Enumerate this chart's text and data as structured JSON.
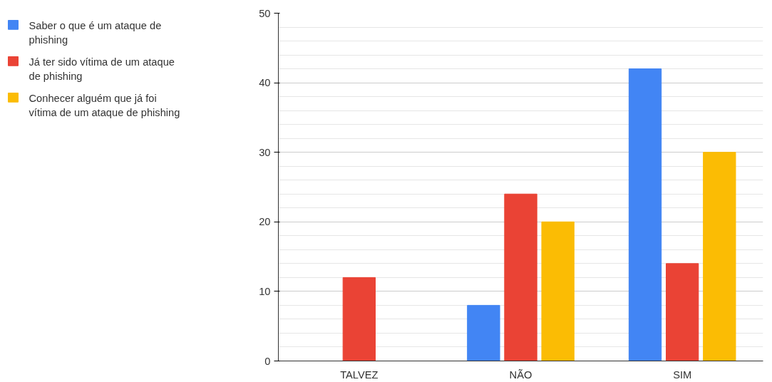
{
  "chart_data": {
    "type": "bar",
    "categories": [
      "TALVEZ",
      "NÃO",
      "SIM"
    ],
    "series": [
      {
        "name": "Saber o que é um ataque de phishing",
        "color": "#4285f4",
        "values": [
          0,
          8,
          42
        ]
      },
      {
        "name": "Já ter sido vítima de um ataque de phishing",
        "color": "#ea4335",
        "values": [
          12,
          24,
          14
        ]
      },
      {
        "name": "Conhecer alguém que já foi vítima de um ataque de phishing",
        "color": "#fbbc04",
        "values": [
          0,
          20,
          30
        ]
      }
    ],
    "ylim": [
      0,
      50
    ],
    "yticks": [
      0,
      10,
      20,
      30,
      40,
      50
    ],
    "grid": "y",
    "legend": "top left"
  }
}
